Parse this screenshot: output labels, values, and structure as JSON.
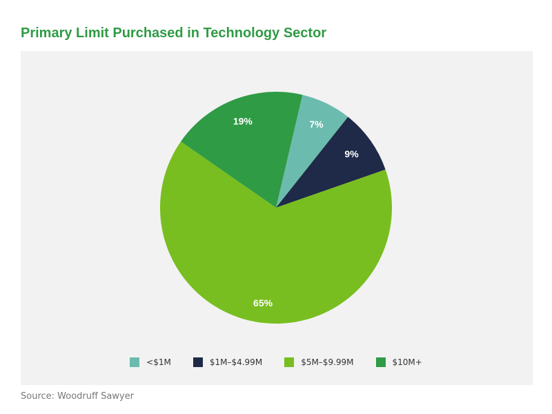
{
  "chart_data": {
    "type": "pie",
    "title": "Primary Limit Purchased in Technology Sector",
    "categories": [
      "<$1M",
      "$1M–$4.99M",
      "$5M–$9.99M",
      "$10M+"
    ],
    "values": [
      7,
      9,
      65,
      19
    ],
    "data_labels": [
      "7%",
      "9%",
      "65%",
      "19%"
    ],
    "colors": [
      "#6bbcae",
      "#1e2a47",
      "#78be20",
      "#2f9b45"
    ],
    "legend_position": "bottom"
  },
  "source": "Source: Woodruff Sawyer"
}
